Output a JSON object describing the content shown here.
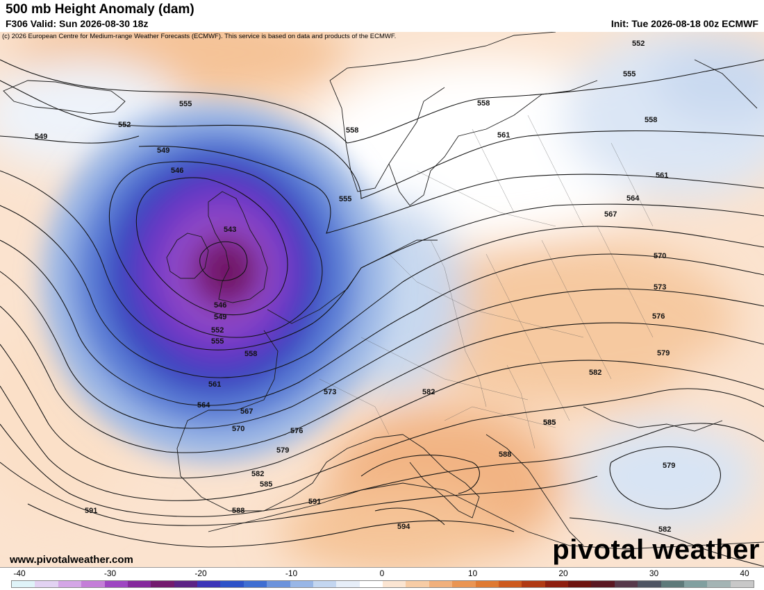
{
  "header": {
    "title": "500 mb Height Anomaly (dam)",
    "valid": "F306 Valid: Sun 2026-08-30 18z",
    "init": "Init: Tue 2026-08-18 00z ECMWF",
    "credit": "(c) 2026 European Centre for Medium-range Weather Forecasts (ECMWF). This service is based on data and products of the ECMWF."
  },
  "footer": {
    "website": "www.pivotalweather.com",
    "brand": "pivotal weather"
  },
  "colorbar": {
    "ticks": [
      "-40",
      "-30",
      "-20",
      "-10",
      "0",
      "10",
      "20",
      "30",
      "40"
    ],
    "colors": [
      "#dff3f8",
      "#e2d2f2",
      "#d4a6e6",
      "#c47ed8",
      "#9e46c2",
      "#84299c",
      "#731a6e",
      "#5b2385",
      "#3b34b8",
      "#2c52c8",
      "#3e6ed2",
      "#6b93dc",
      "#98b6e6",
      "#c3d6f0",
      "#e6eef8",
      "#ffffff",
      "#fbe5d2",
      "#f7cca5",
      "#f1b07c",
      "#ea9553",
      "#df7a32",
      "#cd5a1e",
      "#b03a14",
      "#8e1f10",
      "#6d1410",
      "#5a1822",
      "#573a4b",
      "#4e5562",
      "#5e7a7a",
      "#81a0a0",
      "#a4b4b4",
      "#c8c8c8"
    ]
  },
  "map_labels": [
    {
      "text": "552"
    },
    {
      "text": "555"
    },
    {
      "text": "558"
    },
    {
      "text": "561"
    },
    {
      "text": "558"
    },
    {
      "text": "561"
    },
    {
      "text": "564"
    },
    {
      "text": "567"
    },
    {
      "text": "570"
    },
    {
      "text": "573"
    },
    {
      "text": "576"
    },
    {
      "text": "579"
    },
    {
      "text": "582"
    },
    {
      "text": "585"
    },
    {
      "text": "588"
    },
    {
      "text": "591"
    },
    {
      "text": "594"
    },
    {
      "text": "579"
    },
    {
      "text": "582"
    },
    {
      "text": "549"
    },
    {
      "text": "555"
    },
    {
      "text": "552"
    },
    {
      "text": "549"
    },
    {
      "text": "546"
    },
    {
      "text": "543"
    },
    {
      "text": "546"
    },
    {
      "text": "549"
    },
    {
      "text": "552"
    },
    {
      "text": "555"
    },
    {
      "text": "558"
    },
    {
      "text": "561"
    },
    {
      "text": "564"
    },
    {
      "text": "567"
    },
    {
      "text": "570"
    },
    {
      "text": "573"
    },
    {
      "text": "576"
    },
    {
      "text": "579"
    },
    {
      "text": "582"
    },
    {
      "text": "585"
    },
    {
      "text": "588"
    },
    {
      "text": "591"
    },
    {
      "text": "582"
    },
    {
      "text": "555"
    },
    {
      "text": "558"
    },
    {
      "text": "585"
    }
  ]
}
